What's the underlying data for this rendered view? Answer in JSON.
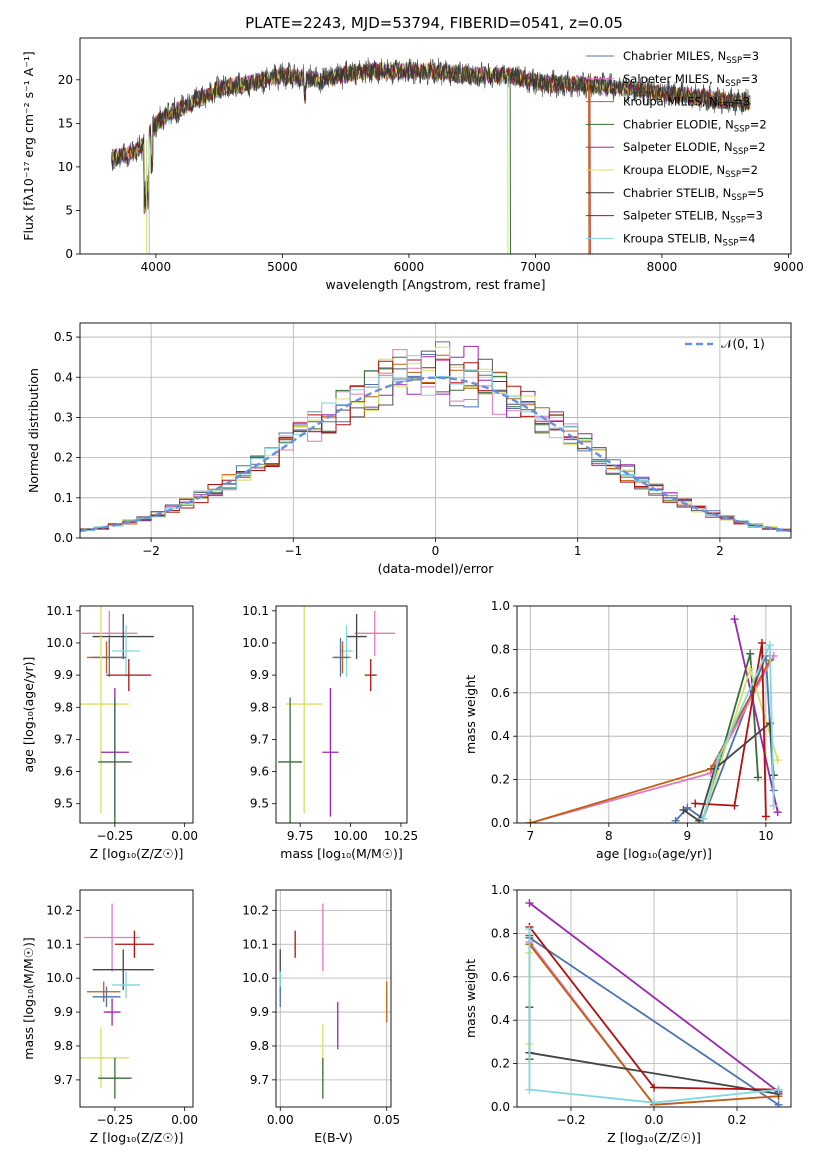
{
  "figure_title": "PLATE=2243, MJD=53794, FIBERID=0541, z=0.05",
  "colors": [
    "#4c72b0",
    "#dd8452",
    "#6a9a5f",
    "#e377c2",
    "#9b27b0",
    "#d8e060",
    "#555555",
    "#b01010",
    "#7fd8e0",
    "#c06010",
    "#4a4a4a"
  ],
  "chart_data": [
    {
      "id": "spectrum",
      "type": "line",
      "title": "PLATE=2243, MJD=53794, FIBERID=0541, z=0.05",
      "xlabel": "wavelength [Angstrom, rest frame]",
      "ylabel": "Flux [fλ10⁻¹⁷ erg cm⁻² s⁻¹ A⁻¹]",
      "xlim": [
        3400,
        9020
      ],
      "ylim": [
        0,
        24.8
      ],
      "xticks": [
        4000,
        5000,
        6000,
        7000,
        8000,
        9000
      ],
      "yticks": [
        0,
        5,
        10,
        15,
        20
      ],
      "grid": false,
      "legend_position": "top-right",
      "legend": [
        {
          "label": "Chabrier MILES, N",
          "sub": "SSP",
          "tail": "=3",
          "color": "#4c72b0"
        },
        {
          "label": "Salpeter MILES, N",
          "sub": "SSP",
          "tail": "=3",
          "color": "#e377c2"
        },
        {
          "label": "Kroupa MILES, N",
          "sub": "SSP",
          "tail": "=3",
          "color": "#c06010"
        },
        {
          "label": "Chabrier ELODIE, N",
          "sub": "SSP",
          "tail": "=2",
          "color": "#3a6b3a"
        },
        {
          "label": "Salpeter ELODIE, N",
          "sub": "SSP",
          "tail": "=2",
          "color": "#9b27b0"
        },
        {
          "label": "Kroupa ELODIE, N",
          "sub": "SSP",
          "tail": "=2",
          "color": "#d8e060"
        },
        {
          "label": "Chabrier STELIB, N",
          "sub": "SSP",
          "tail": "=5",
          "color": "#333333"
        },
        {
          "label": "Salpeter STELIB, N",
          "sub": "SSP",
          "tail": "=3",
          "color": "#b01010"
        },
        {
          "label": "Kroupa STELIB, N",
          "sub": "SSP",
          "tail": "=4",
          "color": "#7fd8e0"
        }
      ],
      "continuum": [
        [
          3650,
          11
        ],
        [
          3800,
          11.5
        ],
        [
          3900,
          12.5
        ],
        [
          4000,
          15
        ],
        [
          4100,
          16
        ],
        [
          4300,
          17.5
        ],
        [
          4500,
          19
        ],
        [
          4700,
          19.5
        ],
        [
          5000,
          20.5
        ],
        [
          5300,
          20
        ],
        [
          5600,
          21
        ],
        [
          5900,
          21
        ],
        [
          6200,
          21
        ],
        [
          6500,
          20.5
        ],
        [
          6800,
          20.5
        ],
        [
          7100,
          19.5
        ],
        [
          7400,
          19.5
        ],
        [
          7700,
          19
        ],
        [
          8000,
          18.5
        ],
        [
          8300,
          18
        ],
        [
          8600,
          17.5
        ],
        [
          8700,
          17.5
        ]
      ]
    },
    {
      "id": "residuals",
      "type": "line",
      "xlabel": "(data-model)/error",
      "ylabel": "Normed distribution",
      "xlim": [
        -2.5,
        2.5
      ],
      "ylim": [
        0,
        0.535
      ],
      "xticks": [
        -2,
        -1,
        0,
        1,
        2
      ],
      "yticks": [
        0.0,
        0.1,
        0.2,
        0.3,
        0.4,
        0.5
      ],
      "grid": true,
      "legend_position": "top-right",
      "legend_label": "𝒩(0, 1)",
      "gauss_color": "#6a8ee0",
      "bin_width": 0.1,
      "hist_colors": [
        "#4c72b0",
        "#e377c2",
        "#c06010",
        "#3a6b3a",
        "#9b27b0",
        "#d8e060",
        "#555555",
        "#b01010",
        "#7fd8e0"
      ]
    },
    {
      "id": "age-vs-z",
      "type": "scatter",
      "xlabel": "Z [log₁₀(Z/Z☉)]",
      "ylabel": "age  [log₁₀(age/yr)]",
      "xlim": [
        -0.375,
        0.03
      ],
      "ylim": [
        9.44,
        10.115
      ],
      "xticks": [
        -0.25,
        0.0
      ],
      "yticks": [
        9.5,
        9.6,
        9.7,
        9.8,
        9.9,
        10.0,
        10.1
      ],
      "grid": false,
      "points": [
        {
          "x": -0.27,
          "y": 10.03,
          "xerr": 0.1,
          "yerr": 0.07,
          "color": "#e377c2"
        },
        {
          "x": -0.22,
          "y": 10.02,
          "xerr": 0.11,
          "yerr": 0.07,
          "color": "#444444"
        },
        {
          "x": -0.21,
          "y": 9.975,
          "xerr": 0.05,
          "yerr": 0.08,
          "color": "#7fd8e0"
        },
        {
          "x": -0.28,
          "y": 9.955,
          "xerr": 0.07,
          "yerr": 0.05,
          "color": "#c06010"
        },
        {
          "x": -0.27,
          "y": 9.955,
          "xerr": 0.06,
          "yerr": 0.06,
          "color": "#4c72b0"
        },
        {
          "x": -0.2,
          "y": 9.9,
          "xerr": 0.08,
          "yerr": 0.05,
          "color": "#b01010"
        },
        {
          "x": -0.3,
          "y": 9.81,
          "xerr": 0.1,
          "yerr": 0.34,
          "color": "#d8e060"
        },
        {
          "x": -0.25,
          "y": 9.66,
          "xerr": 0.05,
          "yerr": 0.2,
          "color": "#9b27b0"
        },
        {
          "x": -0.25,
          "y": 9.63,
          "xerr": 0.06,
          "yerr": 0.2,
          "color": "#3a6b3a"
        }
      ]
    },
    {
      "id": "age-vs-mass",
      "type": "scatter",
      "xlabel": "mass [log₁₀(M/M☉)]",
      "ylabel": "",
      "xlim": [
        9.63,
        10.28
      ],
      "ylim": [
        9.44,
        10.115
      ],
      "xticks": [
        9.75,
        10.0,
        10.25
      ],
      "yticks": [
        9.5,
        9.6,
        9.7,
        9.8,
        9.9,
        10.0,
        10.1
      ],
      "grid": false,
      "points": [
        {
          "x": 10.12,
          "y": 10.03,
          "xerr": 0.1,
          "yerr": 0.07,
          "color": "#e377c2"
        },
        {
          "x": 10.03,
          "y": 10.02,
          "xerr": 0.05,
          "yerr": 0.07,
          "color": "#444444"
        },
        {
          "x": 9.98,
          "y": 9.975,
          "xerr": 0.03,
          "yerr": 0.08,
          "color": "#7fd8e0"
        },
        {
          "x": 9.96,
          "y": 9.955,
          "xerr": 0.04,
          "yerr": 0.05,
          "color": "#c06010"
        },
        {
          "x": 9.95,
          "y": 9.955,
          "xerr": 0.04,
          "yerr": 0.06,
          "color": "#4c72b0"
        },
        {
          "x": 10.1,
          "y": 9.9,
          "xerr": 0.03,
          "yerr": 0.05,
          "color": "#b01010"
        },
        {
          "x": 9.77,
          "y": 9.81,
          "xerr": 0.09,
          "yerr": 0.34,
          "color": "#d8e060"
        },
        {
          "x": 9.9,
          "y": 9.66,
          "xerr": 0.04,
          "yerr": 0.2,
          "color": "#9b27b0"
        },
        {
          "x": 9.7,
          "y": 9.63,
          "xerr": 0.06,
          "yerr": 0.2,
          "color": "#3a6b3a"
        }
      ]
    },
    {
      "id": "weight-vs-age",
      "type": "line",
      "xlabel": "age  [log₁₀(age/yr)]",
      "ylabel": "mass weight",
      "xlim": [
        6.83,
        10.32
      ],
      "ylim": [
        0,
        1.0
      ],
      "xticks": [
        7,
        8,
        9,
        10
      ],
      "yticks": [
        0.0,
        0.2,
        0.4,
        0.6,
        0.8,
        1.0
      ],
      "grid": true,
      "series": [
        {
          "color": "#4c72b0",
          "x": [
            8.85,
            9.0,
            9.2,
            10.0,
            10.1
          ],
          "y": [
            0.01,
            0.07,
            0.02,
            0.77,
            0.15
          ]
        },
        {
          "color": "#e377c2",
          "x": [
            7.0,
            9.3,
            10.1
          ],
          "y": [
            0.0,
            0.23,
            0.77
          ]
        },
        {
          "color": "#c06010",
          "x": [
            7.0,
            9.3,
            10.05
          ],
          "y": [
            0.0,
            0.25,
            0.75
          ]
        },
        {
          "color": "#3a6b3a",
          "x": [
            9.2,
            9.8,
            9.9
          ],
          "y": [
            0.02,
            0.78,
            0.21
          ]
        },
        {
          "color": "#9b27b0",
          "x": [
            9.6,
            10.15
          ],
          "y": [
            0.94,
            0.05
          ]
        },
        {
          "color": "#d8e060",
          "x": [
            9.2,
            9.8,
            10.15
          ],
          "y": [
            0.02,
            0.71,
            0.29
          ]
        },
        {
          "color": "#444444",
          "x": [
            8.95,
            9.15,
            9.35,
            10.05,
            10.1
          ],
          "y": [
            0.06,
            0.01,
            0.25,
            0.46,
            0.22
          ]
        },
        {
          "color": "#b01010",
          "x": [
            9.1,
            9.6,
            9.95,
            10.0
          ],
          "y": [
            0.09,
            0.08,
            0.83,
            0.03
          ]
        },
        {
          "color": "#7fd8e0",
          "x": [
            9.2,
            9.4,
            10.05,
            10.1
          ],
          "y": [
            0.02,
            0.3,
            0.82,
            0.08
          ]
        }
      ]
    },
    {
      "id": "mass-vs-z",
      "type": "scatter",
      "xlabel": "Z [log₁₀(Z/Z☉)]",
      "ylabel": "mass [log₁₀(M/M☉)]",
      "xlim": [
        -0.375,
        0.03
      ],
      "ylim": [
        9.62,
        10.26
      ],
      "xticks": [
        -0.25,
        0.0
      ],
      "yticks": [
        9.7,
        9.8,
        9.9,
        10.0,
        10.1,
        10.2
      ],
      "grid": false,
      "points": [
        {
          "x": -0.26,
          "y": 10.12,
          "xerr": 0.1,
          "yerr": 0.1,
          "color": "#e377c2"
        },
        {
          "x": -0.18,
          "y": 10.1,
          "xerr": 0.07,
          "yerr": 0.04,
          "color": "#b01010"
        },
        {
          "x": -0.22,
          "y": 10.025,
          "xerr": 0.11,
          "yerr": 0.06,
          "color": "#444444"
        },
        {
          "x": -0.21,
          "y": 9.98,
          "xerr": 0.05,
          "yerr": 0.04,
          "color": "#7fd8e0"
        },
        {
          "x": -0.29,
          "y": 9.96,
          "xerr": 0.06,
          "yerr": 0.03,
          "color": "#c06010"
        },
        {
          "x": -0.28,
          "y": 9.945,
          "xerr": 0.05,
          "yerr": 0.03,
          "color": "#4c72b0"
        },
        {
          "x": -0.26,
          "y": 9.9,
          "xerr": 0.03,
          "yerr": 0.04,
          "color": "#9b27b0"
        },
        {
          "x": -0.3,
          "y": 9.765,
          "xerr": 0.1,
          "yerr": 0.09,
          "color": "#d8e060"
        },
        {
          "x": -0.25,
          "y": 9.705,
          "xerr": 0.06,
          "yerr": 0.06,
          "color": "#3a6b3a"
        }
      ]
    },
    {
      "id": "mass-vs-ebv",
      "type": "scatter",
      "xlabel": "E(B-V)",
      "ylabel": "",
      "xlim": [
        -0.002,
        0.052
      ],
      "ylim": [
        9.62,
        10.26
      ],
      "xticks": [
        0.0,
        0.05
      ],
      "yticks": [
        9.7,
        9.8,
        9.9,
        10.0,
        10.1,
        10.2
      ],
      "grid": true,
      "points": [
        {
          "x": 0.02,
          "y": 10.12,
          "yerr": 0.1,
          "color": "#e377c2"
        },
        {
          "x": 0.007,
          "y": 10.1,
          "yerr": 0.04,
          "color": "#b01010"
        },
        {
          "x": 0.0,
          "y": 10.025,
          "yerr": 0.06,
          "color": "#444444"
        },
        {
          "x": 0.0,
          "y": 9.98,
          "yerr": 0.04,
          "color": "#7fd8e0"
        },
        {
          "x": 0.05,
          "y": 9.93,
          "yerr": 0.06,
          "color": "#c06010"
        },
        {
          "x": 0.0,
          "y": 9.945,
          "yerr": 0.03,
          "color": "#4c72b0"
        },
        {
          "x": 0.027,
          "y": 9.86,
          "yerr": 0.07,
          "color": "#9b27b0"
        },
        {
          "x": 0.02,
          "y": 9.775,
          "yerr": 0.09,
          "color": "#d8e060"
        },
        {
          "x": 0.02,
          "y": 9.705,
          "yerr": 0.06,
          "color": "#3a6b3a"
        }
      ]
    },
    {
      "id": "weight-vs-z",
      "type": "line",
      "xlabel": "Z [log₁₀(Z/Z☉)]",
      "ylabel": "mass weight",
      "xlim": [
        -0.33,
        0.33
      ],
      "ylim": [
        0,
        1.0
      ],
      "xticks": [
        -0.2,
        0.0,
        0.2
      ],
      "yticks": [
        0.0,
        0.2,
        0.4,
        0.6,
        0.8,
        1.0
      ],
      "grid": true,
      "series": [
        {
          "color": "#4c72b0",
          "x": [
            -0.3,
            0.3
          ],
          "y": [
            0.78,
            0.01
          ]
        },
        {
          "color": "#e377c2",
          "x": [
            -0.3,
            0.0,
            0.3
          ],
          "y": [
            0.76,
            0.01,
            0.05
          ]
        },
        {
          "color": "#c06010",
          "x": [
            -0.3,
            0.0,
            0.3
          ],
          "y": [
            0.75,
            0.01,
            0.05
          ]
        },
        {
          "color": "#3a6b3a",
          "x": [
            -0.3,
            -0.3
          ],
          "y": [
            0.79,
            0.22
          ]
        },
        {
          "color": "#9b27b0",
          "x": [
            -0.3,
            0.3
          ],
          "y": [
            0.94,
            0.07
          ]
        },
        {
          "color": "#d8e060",
          "x": [
            -0.3,
            -0.3
          ],
          "y": [
            0.71,
            0.29
          ]
        },
        {
          "color": "#444444",
          "x": [
            -0.3,
            -0.3,
            0.3
          ],
          "y": [
            0.46,
            0.25,
            0.06
          ]
        },
        {
          "color": "#b01010",
          "x": [
            -0.3,
            0.0,
            0.3
          ],
          "y": [
            0.83,
            0.09,
            0.08
          ]
        },
        {
          "color": "#7fd8e0",
          "x": [
            -0.3,
            -0.3,
            0.0,
            0.3
          ],
          "y": [
            0.82,
            0.08,
            0.02,
            0.08
          ]
        }
      ]
    }
  ]
}
